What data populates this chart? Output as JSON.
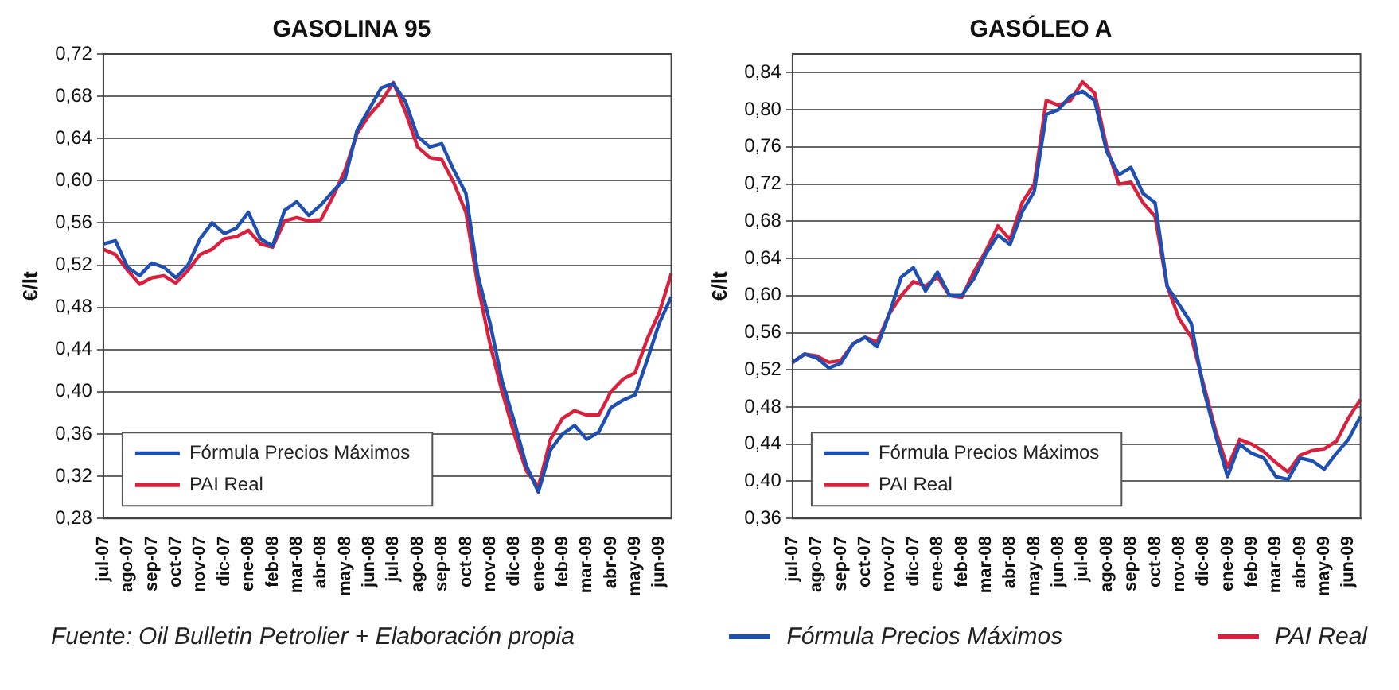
{
  "chart_data": [
    {
      "type": "line",
      "title": "GASOLINA 95",
      "ylabel": "€/lt",
      "annotations": [
        "Fuente: Oil Bulletin Petrolier + Elaboración propia"
      ],
      "categories": [
        "jul-07",
        null,
        "ago-07",
        null,
        "sep-07",
        null,
        "oct-07",
        null,
        "nov-07",
        null,
        "dic-07",
        null,
        "ene-08",
        null,
        "feb-08",
        null,
        "mar-08",
        null,
        "abr-08",
        null,
        "may-08",
        null,
        "jun-08",
        null,
        "jul-08",
        null,
        "ago-08",
        null,
        "sep-08",
        null,
        "oct-08",
        null,
        "nov-08",
        null,
        "dic-08",
        null,
        "ene-09",
        null,
        "feb-09",
        null,
        "mar-09",
        null,
        "abr-09",
        null,
        "may-09",
        null,
        "jun-09",
        null
      ],
      "series": [
        {
          "name": "Fórmula Precios Máximos",
          "color": "#1f4fb0",
          "values": [
            0.54,
            0.543,
            0.518,
            0.51,
            0.522,
            0.518,
            0.508,
            0.52,
            0.545,
            0.56,
            0.55,
            0.555,
            0.57,
            0.545,
            0.538,
            0.572,
            0.58,
            0.567,
            0.577,
            0.59,
            0.602,
            0.648,
            0.668,
            0.688,
            0.692,
            0.675,
            0.642,
            0.632,
            0.635,
            0.61,
            0.588,
            0.51,
            0.465,
            0.41,
            0.372,
            0.33,
            0.305,
            0.345,
            0.36,
            0.368,
            0.355,
            0.362,
            0.385,
            0.392,
            0.397,
            0.43,
            0.465,
            0.49
          ]
        },
        {
          "name": "PAI Real",
          "color": "#d8213f",
          "values": [
            0.535,
            0.53,
            0.515,
            0.502,
            0.508,
            0.51,
            0.503,
            0.515,
            0.53,
            0.535,
            0.545,
            0.547,
            0.553,
            0.54,
            0.537,
            0.562,
            0.565,
            0.562,
            0.563,
            0.585,
            0.61,
            0.645,
            0.662,
            0.675,
            0.693,
            0.665,
            0.632,
            0.622,
            0.62,
            0.598,
            0.57,
            0.5,
            0.445,
            0.4,
            0.36,
            0.325,
            0.31,
            0.355,
            0.375,
            0.382,
            0.378,
            0.378,
            0.4,
            0.412,
            0.418,
            0.45,
            0.475,
            0.512
          ]
        }
      ],
      "ylim": [
        0.28,
        0.72
      ],
      "yticks": [
        {
          "value": 0.28,
          "label": "0,28"
        },
        {
          "value": 0.32,
          "label": "0,32"
        },
        {
          "value": 0.36,
          "label": "0,36"
        },
        {
          "value": 0.4,
          "label": "0,40"
        },
        {
          "value": 0.44,
          "label": "0,44"
        },
        {
          "value": 0.48,
          "label": "0,48"
        },
        {
          "value": 0.52,
          "label": "0,52"
        },
        {
          "value": 0.56,
          "label": "0,56"
        },
        {
          "value": 0.6,
          "label": "0,60"
        },
        {
          "value": 0.64,
          "label": "0,64"
        },
        {
          "value": 0.68,
          "label": "0,68"
        },
        {
          "value": 0.72,
          "label": "0,72"
        }
      ],
      "grid": "y",
      "legend": "bottom left",
      "line_style": "solid"
    },
    {
      "type": "line",
      "title": "GASÓLEO A",
      "ylabel": "€/lt",
      "categories": [
        "jul-07",
        null,
        "ago-07",
        null,
        "sep-07",
        null,
        "oct-07",
        null,
        "nov-07",
        null,
        "dic-07",
        null,
        "ene-08",
        null,
        "feb-08",
        null,
        "mar-08",
        null,
        "abr-08",
        null,
        "may-08",
        null,
        "jun-08",
        null,
        "jul-08",
        null,
        "ago-08",
        null,
        "sep-08",
        null,
        "oct-08",
        null,
        "nov-08",
        null,
        "dic-08",
        null,
        "ene-09",
        null,
        "feb-09",
        null,
        "mar-09",
        null,
        "abr-09",
        null,
        "may-09",
        null,
        "jun-09",
        null
      ],
      "series": [
        {
          "name": "Fórmula Precios Máximos",
          "color": "#1f4fb0",
          "values": [
            0.528,
            0.537,
            0.533,
            0.522,
            0.527,
            0.548,
            0.555,
            0.545,
            0.58,
            0.62,
            0.63,
            0.605,
            0.625,
            0.6,
            0.6,
            0.618,
            0.645,
            0.665,
            0.655,
            0.69,
            0.712,
            0.795,
            0.8,
            0.815,
            0.82,
            0.81,
            0.755,
            0.73,
            0.738,
            0.71,
            0.7,
            0.61,
            0.59,
            0.57,
            0.5,
            0.45,
            0.405,
            0.44,
            0.43,
            0.425,
            0.405,
            0.402,
            0.425,
            0.422,
            0.413,
            0.43,
            0.445,
            0.47
          ]
        },
        {
          "name": "PAI Real",
          "color": "#d8213f",
          "values": [
            0.528,
            0.537,
            0.535,
            0.528,
            0.53,
            0.548,
            0.555,
            0.55,
            0.58,
            0.6,
            0.615,
            0.61,
            0.62,
            0.6,
            0.598,
            0.625,
            0.648,
            0.675,
            0.66,
            0.7,
            0.72,
            0.81,
            0.805,
            0.81,
            0.83,
            0.818,
            0.76,
            0.72,
            0.722,
            0.7,
            0.685,
            0.61,
            0.575,
            0.555,
            0.505,
            0.455,
            0.415,
            0.445,
            0.44,
            0.432,
            0.42,
            0.41,
            0.428,
            0.433,
            0.435,
            0.443,
            0.468,
            0.488
          ]
        }
      ],
      "ylim": [
        0.36,
        0.86
      ],
      "yticks": [
        {
          "value": 0.36,
          "label": "0,36"
        },
        {
          "value": 0.4,
          "label": "0,40"
        },
        {
          "value": 0.44,
          "label": "0,44"
        },
        {
          "value": 0.48,
          "label": "0,48"
        },
        {
          "value": 0.52,
          "label": "0,52"
        },
        {
          "value": 0.56,
          "label": "0,56"
        },
        {
          "value": 0.6,
          "label": "0,60"
        },
        {
          "value": 0.64,
          "label": "0,64"
        },
        {
          "value": 0.68,
          "label": "0,68"
        },
        {
          "value": 0.72,
          "label": "0,72"
        },
        {
          "value": 0.76,
          "label": "0,76"
        },
        {
          "value": 0.8,
          "label": "0,80"
        },
        {
          "value": 0.84,
          "label": "0,84"
        }
      ],
      "grid": "y",
      "legend": "bottom left",
      "line_style": "solid"
    }
  ]
}
